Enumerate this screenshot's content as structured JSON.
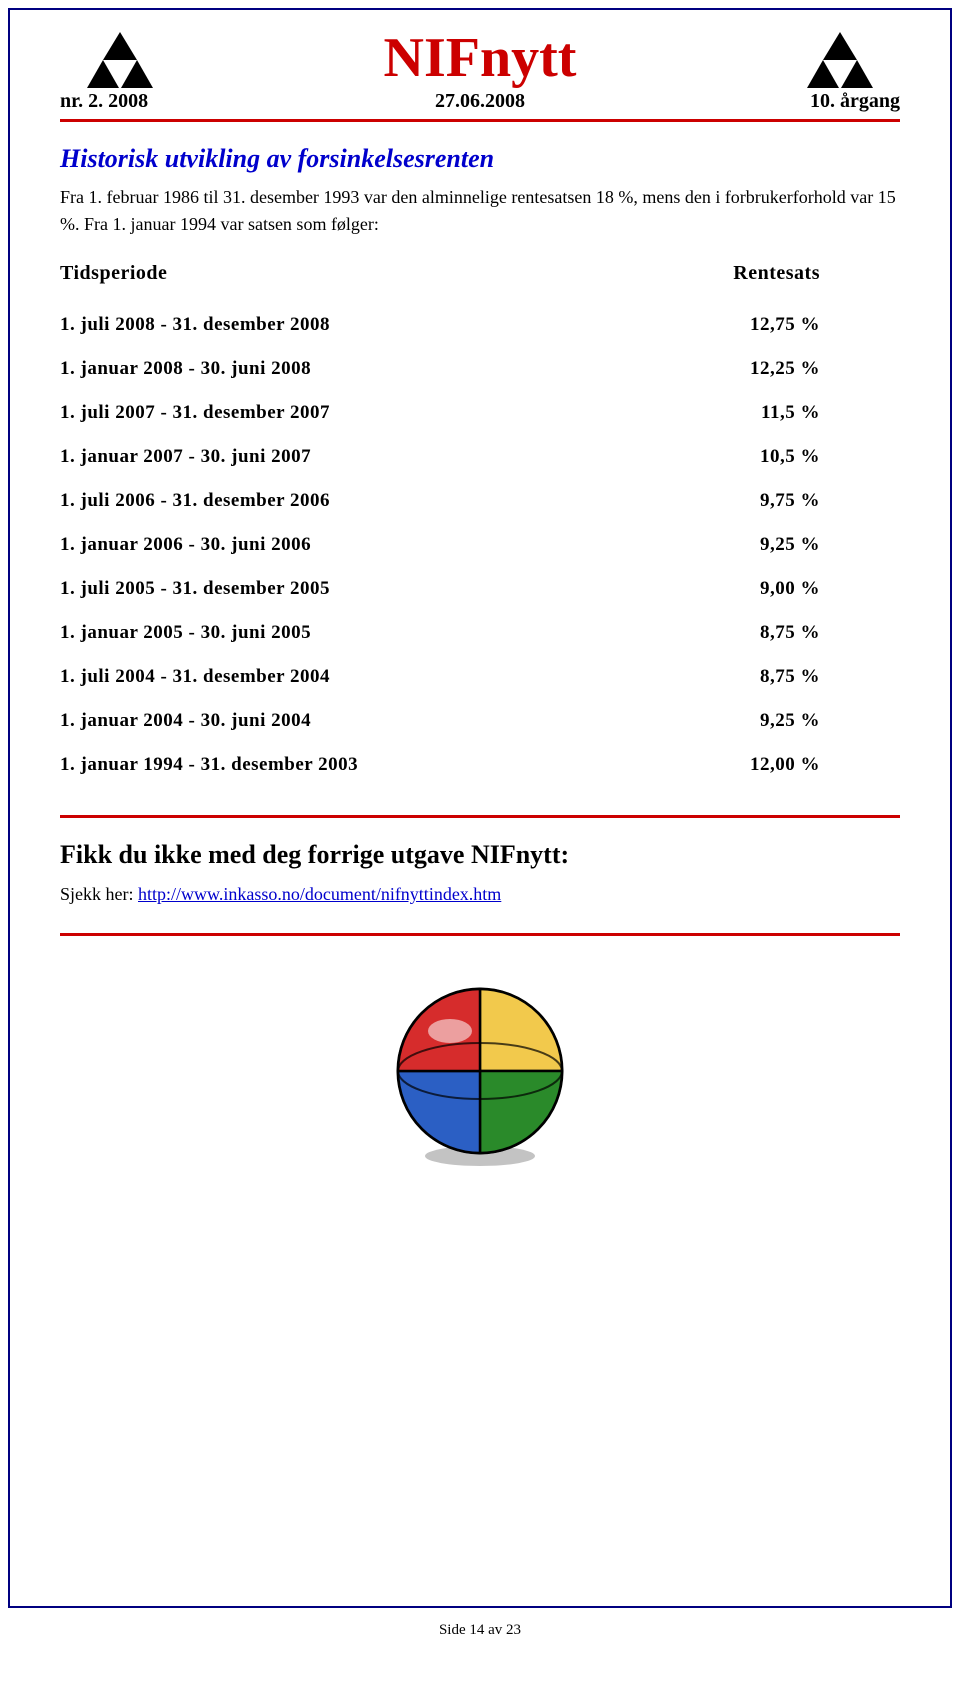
{
  "masthead": {
    "title": "NIFnytt",
    "issue": "nr. 2. 2008",
    "date": "27.06.2008",
    "volume": "10. årgang",
    "title_color": "#cc0000",
    "rule_color": "#cc0000"
  },
  "article": {
    "title": "Historisk utvikling av forsinkelsesrenten",
    "title_color": "#0000cc",
    "intro": "Fra 1. februar 1986 til 31. desember 1993 var den alminnelige rentesatsen 18 %, mens den i forbrukerforhold var 15 %. Fra 1. januar 1994 var satsen som følger:"
  },
  "table": {
    "header_period": "Tidsperiode",
    "header_rate": "Rentesats",
    "rows": [
      {
        "period": "1. juli 2008 - 31. desember 2008",
        "rate": "12,75 %"
      },
      {
        "period": "1. januar 2008 - 30. juni 2008",
        "rate": "12,25 %"
      },
      {
        "period": "1. juli 2007 - 31. desember 2007",
        "rate": "11,5 %"
      },
      {
        "period": "1. januar 2007 - 30. juni 2007",
        "rate": "10,5 %"
      },
      {
        "period": "1. juli 2006 - 31. desember 2006",
        "rate": "9,75 %"
      },
      {
        "period": "1. januar 2006 - 30. juni 2006",
        "rate": "9,25 %"
      },
      {
        "period": "1. juli 2005 - 31. desember 2005",
        "rate": "9,00 %"
      },
      {
        "period": "1. januar 2005 - 30. juni 2005",
        "rate": "8,75 %"
      },
      {
        "period": "1. juli 2004 - 31. desember 2004",
        "rate": "8,75 %"
      },
      {
        "period": "1. januar 2004 - 30. juni 2004",
        "rate": "9,25 %"
      },
      {
        "period": "1. januar 1994 - 31. desember 2003",
        "rate": "12,00 %"
      }
    ]
  },
  "footer": {
    "heading": "Fikk du ikke med deg forrige utgave NIFnytt:",
    "prefix": "Sjekk her: ",
    "link_text": "http://www.inkasso.no/document/nifnyttindex.htm",
    "link_href": "http://www.inkasso.no/document/nifnyttindex.htm"
  },
  "page_number": "Side 14 av 23",
  "colors": {
    "border": "#000080",
    "link": "#0000cc",
    "text": "#000000"
  },
  "ball": {
    "colors": {
      "red": "#d62c2c",
      "yellow": "#f2c94c",
      "green": "#2a8a2a",
      "blue": "#2b5fc4",
      "shadow": "#888888"
    }
  }
}
